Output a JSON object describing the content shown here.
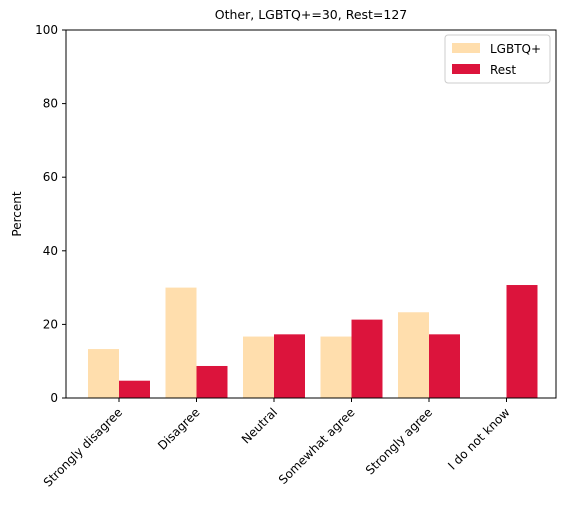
{
  "chart_data": {
    "type": "bar",
    "title": "Other, LGBTQ+=30, Rest=127",
    "xlabel": "",
    "ylabel": "Percent",
    "ylim": [
      0,
      100
    ],
    "yticks": [
      0,
      20,
      40,
      60,
      80,
      100
    ],
    "categories": [
      "Strongly disagree",
      "Disagree",
      "Neutral",
      "Somewhat agree",
      "Strongly agree",
      "I do not know"
    ],
    "series": [
      {
        "name": "LGBTQ+",
        "color": "#FFDEAD",
        "values": [
          13.3,
          30.0,
          16.7,
          16.7,
          23.3,
          0.0
        ]
      },
      {
        "name": "Rest",
        "color": "#DC143C",
        "values": [
          4.7,
          8.7,
          17.3,
          21.3,
          17.3,
          30.7
        ]
      }
    ],
    "legend": "top-right",
    "grid": false
  }
}
